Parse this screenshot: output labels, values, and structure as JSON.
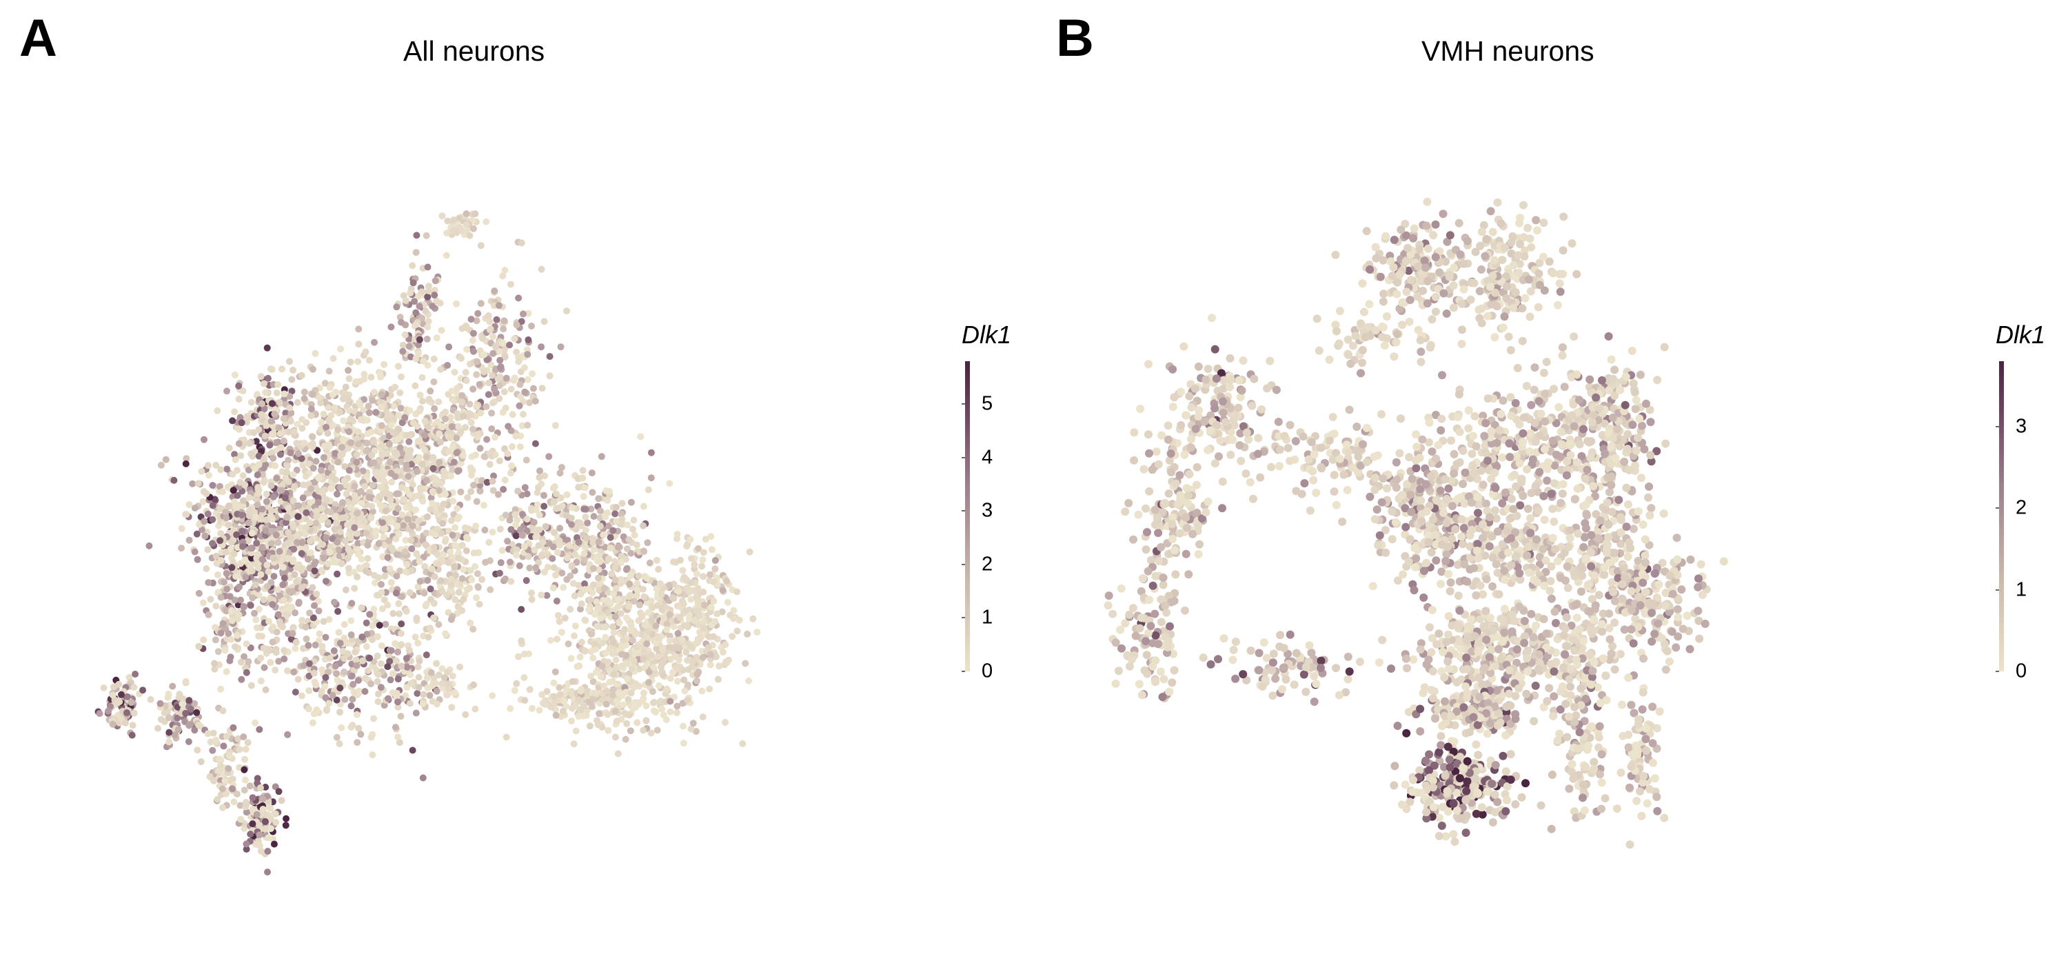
{
  "panels": [
    {
      "letter": "A",
      "title": "All neurons",
      "legend": {
        "title": "Dlk1",
        "ticks": [
          "0",
          "1",
          "2",
          "3",
          "4",
          "5"
        ],
        "max": 5.8
      }
    },
    {
      "letter": "B",
      "title": "VMH neurons",
      "legend": {
        "title": "Dlk1",
        "ticks": [
          "0",
          "1",
          "2",
          "3"
        ],
        "max": 3.8
      }
    }
  ],
  "colors": {
    "low": "#ece3cc",
    "mid": "#a98e98",
    "high": "#4a2540"
  },
  "chart_data": [
    {
      "type": "scatter",
      "title": "All neurons",
      "xlabel": "",
      "ylabel": "",
      "color_variable": "Dlk1",
      "color_range": [
        0,
        5.8
      ],
      "color_ticks": [
        0,
        1,
        2,
        3,
        4,
        5
      ],
      "grid": false,
      "legend_position": "right",
      "clusters": [
        {
          "x": 0.48,
          "y": 0.135,
          "sx": 0.012,
          "sy": 0.008,
          "n": 40,
          "expr": 0.6
        },
        {
          "x": 0.43,
          "y": 0.25,
          "sx": 0.015,
          "sy": 0.04,
          "n": 100,
          "expr": 2.2
        },
        {
          "x": 0.53,
          "y": 0.3,
          "sx": 0.03,
          "sy": 0.05,
          "n": 200,
          "expr": 1.5
        },
        {
          "x": 0.24,
          "y": 0.38,
          "sx": 0.02,
          "sy": 0.03,
          "n": 150,
          "expr": 3.0
        },
        {
          "x": 0.35,
          "y": 0.4,
          "sx": 0.05,
          "sy": 0.05,
          "n": 400,
          "expr": 1.0
        },
        {
          "x": 0.45,
          "y": 0.42,
          "sx": 0.04,
          "sy": 0.04,
          "n": 300,
          "expr": 1.2
        },
        {
          "x": 0.22,
          "y": 0.52,
          "sx": 0.04,
          "sy": 0.05,
          "n": 500,
          "expr": 2.8
        },
        {
          "x": 0.3,
          "y": 0.5,
          "sx": 0.04,
          "sy": 0.05,
          "n": 400,
          "expr": 1.8
        },
        {
          "x": 0.4,
          "y": 0.52,
          "sx": 0.04,
          "sy": 0.04,
          "n": 300,
          "expr": 1.0
        },
        {
          "x": 0.47,
          "y": 0.58,
          "sx": 0.02,
          "sy": 0.04,
          "n": 120,
          "expr": 0.5
        },
        {
          "x": 0.58,
          "y": 0.53,
          "sx": 0.03,
          "sy": 0.04,
          "n": 200,
          "expr": 2.0
        },
        {
          "x": 0.66,
          "y": 0.56,
          "sx": 0.03,
          "sy": 0.05,
          "n": 250,
          "expr": 1.5
        },
        {
          "x": 0.7,
          "y": 0.68,
          "sx": 0.05,
          "sy": 0.05,
          "n": 500,
          "expr": 0.4
        },
        {
          "x": 0.78,
          "y": 0.62,
          "sx": 0.025,
          "sy": 0.04,
          "n": 200,
          "expr": 0.4
        },
        {
          "x": 0.64,
          "y": 0.74,
          "sx": 0.04,
          "sy": 0.015,
          "n": 150,
          "expr": 0.4
        },
        {
          "x": 0.26,
          "y": 0.62,
          "sx": 0.025,
          "sy": 0.05,
          "n": 200,
          "expr": 2.0
        },
        {
          "x": 0.33,
          "y": 0.7,
          "sx": 0.025,
          "sy": 0.04,
          "n": 150,
          "expr": 2.0
        },
        {
          "x": 0.4,
          "y": 0.7,
          "sx": 0.025,
          "sy": 0.05,
          "n": 150,
          "expr": 2.5
        },
        {
          "x": 0.46,
          "y": 0.72,
          "sx": 0.02,
          "sy": 0.015,
          "n": 50,
          "expr": 0.6
        },
        {
          "x": 0.19,
          "y": 0.64,
          "sx": 0.015,
          "sy": 0.03,
          "n": 80,
          "expr": 2.0
        },
        {
          "x": 0.06,
          "y": 0.75,
          "sx": 0.012,
          "sy": 0.015,
          "n": 90,
          "expr": 3.5
        },
        {
          "x": 0.13,
          "y": 0.76,
          "sx": 0.015,
          "sy": 0.02,
          "n": 80,
          "expr": 2.8
        },
        {
          "x": 0.19,
          "y": 0.82,
          "sx": 0.015,
          "sy": 0.03,
          "n": 80,
          "expr": 1.2
        },
        {
          "x": 0.23,
          "y": 0.89,
          "sx": 0.012,
          "sy": 0.025,
          "n": 110,
          "expr": 3.2
        }
      ]
    },
    {
      "type": "scatter",
      "title": "VMH neurons",
      "xlabel": "",
      "ylabel": "",
      "color_variable": "Dlk1",
      "color_range": [
        0,
        3.8
      ],
      "color_ticks": [
        0,
        1,
        2,
        3
      ],
      "grid": false,
      "legend_position": "right",
      "clusters": [
        {
          "x": 0.38,
          "y": 0.18,
          "sx": 0.03,
          "sy": 0.03,
          "n": 150,
          "expr": 0.9
        },
        {
          "x": 0.5,
          "y": 0.2,
          "sx": 0.04,
          "sy": 0.04,
          "n": 180,
          "expr": 0.5
        },
        {
          "x": 0.33,
          "y": 0.28,
          "sx": 0.04,
          "sy": 0.02,
          "n": 60,
          "expr": 0.4
        },
        {
          "x": 0.12,
          "y": 0.38,
          "sx": 0.035,
          "sy": 0.04,
          "n": 150,
          "expr": 0.9
        },
        {
          "x": 0.06,
          "y": 0.5,
          "sx": 0.025,
          "sy": 0.05,
          "n": 120,
          "expr": 0.6
        },
        {
          "x": 0.03,
          "y": 0.68,
          "sx": 0.02,
          "sy": 0.05,
          "n": 100,
          "expr": 1.2
        },
        {
          "x": 0.25,
          "y": 0.44,
          "sx": 0.05,
          "sy": 0.03,
          "n": 100,
          "expr": 0.5
        },
        {
          "x": 0.4,
          "y": 0.5,
          "sx": 0.04,
          "sy": 0.05,
          "n": 250,
          "expr": 1.0
        },
        {
          "x": 0.53,
          "y": 0.42,
          "sx": 0.05,
          "sy": 0.04,
          "n": 250,
          "expr": 0.7
        },
        {
          "x": 0.64,
          "y": 0.4,
          "sx": 0.03,
          "sy": 0.05,
          "n": 200,
          "expr": 0.9
        },
        {
          "x": 0.5,
          "y": 0.56,
          "sx": 0.05,
          "sy": 0.04,
          "n": 250,
          "expr": 0.8
        },
        {
          "x": 0.63,
          "y": 0.58,
          "sx": 0.03,
          "sy": 0.05,
          "n": 200,
          "expr": 0.6
        },
        {
          "x": 0.7,
          "y": 0.63,
          "sx": 0.03,
          "sy": 0.04,
          "n": 150,
          "expr": 0.9
        },
        {
          "x": 0.47,
          "y": 0.7,
          "sx": 0.05,
          "sy": 0.03,
          "n": 250,
          "expr": 0.6
        },
        {
          "x": 0.46,
          "y": 0.78,
          "sx": 0.04,
          "sy": 0.02,
          "n": 150,
          "expr": 1.2
        },
        {
          "x": 0.58,
          "y": 0.72,
          "sx": 0.04,
          "sy": 0.03,
          "n": 150,
          "expr": 0.7
        },
        {
          "x": 0.22,
          "y": 0.72,
          "sx": 0.04,
          "sy": 0.02,
          "n": 80,
          "expr": 1.3
        },
        {
          "x": 0.44,
          "y": 0.88,
          "sx": 0.035,
          "sy": 0.025,
          "n": 250,
          "expr": 2.4
        },
        {
          "x": 0.6,
          "y": 0.84,
          "sx": 0.015,
          "sy": 0.04,
          "n": 80,
          "expr": 0.5
        },
        {
          "x": 0.68,
          "y": 0.84,
          "sx": 0.015,
          "sy": 0.04,
          "n": 70,
          "expr": 0.8
        }
      ]
    }
  ]
}
